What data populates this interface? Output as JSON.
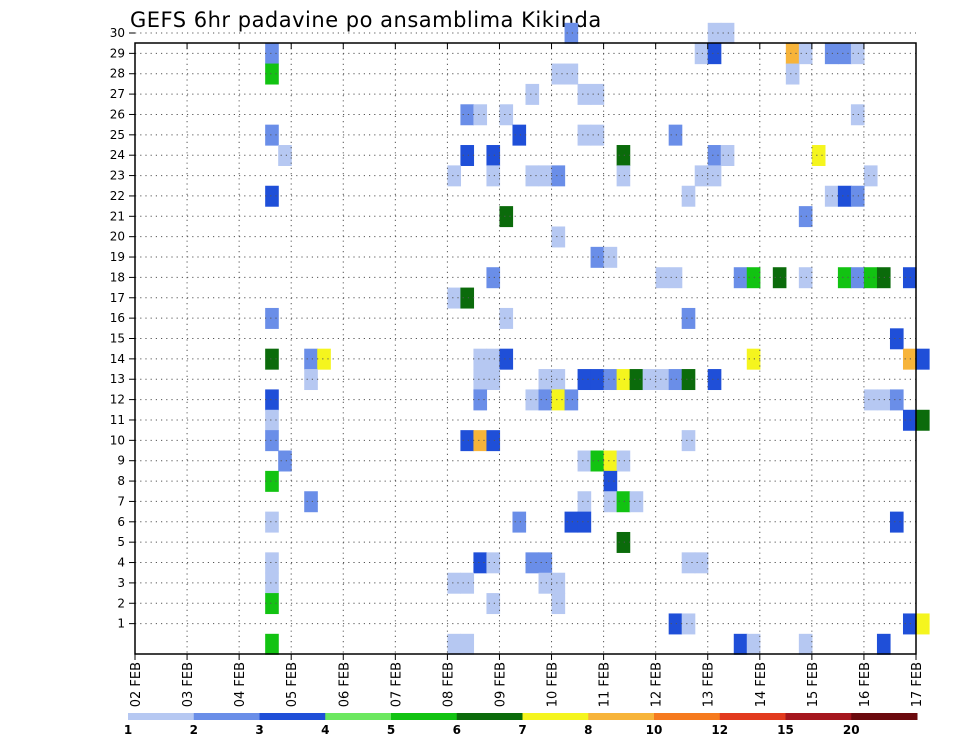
{
  "chart_data": {
    "type": "heatmap",
    "title": "GEFS 6hr padavine po ansamblima Kikinda",
    "xlabel": "",
    "ylabel": "",
    "x_tick_labels": [
      "02 FEB",
      "03 FEB",
      "04 FEB",
      "05 FEB",
      "06 FEB",
      "07 FEB",
      "08 FEB",
      "09 FEB",
      "10 FEB",
      "11 FEB",
      "12 FEB",
      "13 FEB",
      "14 FEB",
      "15 FEB",
      "16 FEB",
      "17 FEB"
    ],
    "y_tick_labels": [
      "1",
      "2",
      "3",
      "4",
      "5",
      "6",
      "7",
      "8",
      "9",
      "10",
      "11",
      "12",
      "13",
      "14",
      "15",
      "16",
      "17",
      "18",
      "19",
      "20",
      "21",
      "22",
      "23",
      "24",
      "25",
      "26",
      "27",
      "28",
      "29",
      "30"
    ],
    "x_range_days": [
      0,
      15
    ],
    "y_range": [
      0,
      30
    ],
    "grid": true,
    "colorbar": {
      "labels": [
        "1",
        "2",
        "3",
        "4",
        "5",
        "6",
        "7",
        "8",
        "10",
        "12",
        "15",
        "20"
      ],
      "colors": [
        "#b6c8f2",
        "#6a8ee8",
        "#1f4fd8",
        "#6ce860",
        "#12c312",
        "#0b6b0b",
        "#f5f51e",
        "#f7b43a",
        "#f67a1e",
        "#e23a1e",
        "#a5161e",
        "#6b0a0e"
      ]
    },
    "cells": [
      [
        8.25,
        30,
        2
      ],
      [
        11.0,
        30,
        1
      ],
      [
        11.25,
        30,
        1
      ],
      [
        2.5,
        29,
        2
      ],
      [
        10.75,
        29,
        1
      ],
      [
        11.0,
        29,
        3
      ],
      [
        12.5,
        29,
        8
      ],
      [
        12.75,
        29,
        1
      ],
      [
        13.25,
        29,
        2
      ],
      [
        13.5,
        29,
        2
      ],
      [
        13.75,
        29,
        1
      ],
      [
        2.5,
        28,
        5
      ],
      [
        8.0,
        28,
        1
      ],
      [
        8.25,
        28,
        1
      ],
      [
        12.5,
        28,
        1
      ],
      [
        7.5,
        27,
        1
      ],
      [
        8.5,
        27,
        1
      ],
      [
        8.75,
        27,
        1
      ],
      [
        6.25,
        26,
        2
      ],
      [
        6.5,
        26,
        1
      ],
      [
        7.0,
        26,
        1
      ],
      [
        13.75,
        26,
        1
      ],
      [
        2.5,
        25,
        2
      ],
      [
        7.25,
        25,
        3
      ],
      [
        8.5,
        25,
        1
      ],
      [
        8.75,
        25,
        1
      ],
      [
        10.25,
        25,
        2
      ],
      [
        2.75,
        24,
        1
      ],
      [
        6.25,
        24,
        3
      ],
      [
        6.75,
        24,
        3
      ],
      [
        9.25,
        24,
        6
      ],
      [
        11.0,
        24,
        2
      ],
      [
        11.25,
        24,
        1
      ],
      [
        13.0,
        24,
        7
      ],
      [
        6.0,
        23,
        1
      ],
      [
        6.75,
        23,
        1
      ],
      [
        7.5,
        23,
        1
      ],
      [
        7.75,
        23,
        1
      ],
      [
        8.0,
        23,
        2
      ],
      [
        9.25,
        23,
        1
      ],
      [
        10.75,
        23,
        1
      ],
      [
        11.0,
        23,
        1
      ],
      [
        14.0,
        23,
        1
      ],
      [
        2.5,
        22,
        3
      ],
      [
        10.5,
        22,
        1
      ],
      [
        13.25,
        22,
        1
      ],
      [
        13.5,
        22,
        3
      ],
      [
        13.75,
        22,
        2
      ],
      [
        7.0,
        21,
        6
      ],
      [
        12.75,
        21,
        2
      ],
      [
        8.0,
        20,
        1
      ],
      [
        8.75,
        19,
        2
      ],
      [
        9.0,
        19,
        1
      ],
      [
        6.75,
        18,
        2
      ],
      [
        10.0,
        18,
        1
      ],
      [
        10.25,
        18,
        1
      ],
      [
        11.5,
        18,
        2
      ],
      [
        11.75,
        18,
        5
      ],
      [
        12.25,
        18,
        6
      ],
      [
        12.75,
        18,
        1
      ],
      [
        13.5,
        18,
        5
      ],
      [
        13.75,
        18,
        2
      ],
      [
        14.0,
        18,
        5
      ],
      [
        14.25,
        18,
        6
      ],
      [
        14.75,
        18,
        3
      ],
      [
        6.0,
        17,
        1
      ],
      [
        6.25,
        17,
        6
      ],
      [
        2.5,
        16,
        2
      ],
      [
        7.0,
        16,
        1
      ],
      [
        10.5,
        16,
        2
      ],
      [
        14.5,
        15,
        3
      ],
      [
        2.5,
        14,
        6
      ],
      [
        3.25,
        14,
        2
      ],
      [
        3.5,
        14,
        7
      ],
      [
        6.5,
        14,
        1
      ],
      [
        6.75,
        14,
        1
      ],
      [
        7.0,
        14,
        3
      ],
      [
        11.75,
        14,
        7
      ],
      [
        14.75,
        14,
        8
      ],
      [
        15.0,
        14,
        3
      ],
      [
        3.25,
        13,
        1
      ],
      [
        6.5,
        13,
        1
      ],
      [
        6.75,
        13,
        1
      ],
      [
        7.75,
        13,
        1
      ],
      [
        8.0,
        13,
        1
      ],
      [
        8.5,
        13,
        3
      ],
      [
        8.75,
        13,
        3
      ],
      [
        9.0,
        13,
        2
      ],
      [
        9.25,
        13,
        7
      ],
      [
        9.5,
        13,
        6
      ],
      [
        9.75,
        13,
        1
      ],
      [
        10.0,
        13,
        1
      ],
      [
        10.25,
        13,
        2
      ],
      [
        10.5,
        13,
        6
      ],
      [
        11.0,
        13,
        3
      ],
      [
        2.5,
        12,
        3
      ],
      [
        6.5,
        12,
        2
      ],
      [
        7.5,
        12,
        1
      ],
      [
        7.75,
        12,
        2
      ],
      [
        8.0,
        12,
        7
      ],
      [
        8.25,
        12,
        2
      ],
      [
        14.0,
        12,
        1
      ],
      [
        14.25,
        12,
        1
      ],
      [
        14.5,
        12,
        2
      ],
      [
        2.5,
        11,
        1
      ],
      [
        14.75,
        11,
        3
      ],
      [
        15.0,
        11,
        6
      ],
      [
        2.5,
        10,
        2
      ],
      [
        6.25,
        10,
        3
      ],
      [
        6.5,
        10,
        8
      ],
      [
        6.75,
        10,
        3
      ],
      [
        10.5,
        10,
        1
      ],
      [
        2.75,
        9,
        2
      ],
      [
        8.5,
        9,
        1
      ],
      [
        8.75,
        9,
        5
      ],
      [
        9.0,
        9,
        7
      ],
      [
        9.25,
        9,
        1
      ],
      [
        2.5,
        8,
        5
      ],
      [
        9.0,
        8,
        3
      ],
      [
        3.25,
        7,
        2
      ],
      [
        8.5,
        7,
        1
      ],
      [
        9.0,
        7,
        1
      ],
      [
        9.25,
        7,
        5
      ],
      [
        9.5,
        7,
        1
      ],
      [
        2.5,
        6,
        1
      ],
      [
        7.25,
        6,
        2
      ],
      [
        8.25,
        6,
        3
      ],
      [
        8.5,
        6,
        3
      ],
      [
        14.5,
        6,
        3
      ],
      [
        9.25,
        5,
        6
      ],
      [
        2.5,
        4,
        1
      ],
      [
        6.5,
        4,
        3
      ],
      [
        6.75,
        4,
        1
      ],
      [
        7.5,
        4,
        2
      ],
      [
        7.75,
        4,
        2
      ],
      [
        10.5,
        4,
        1
      ],
      [
        10.75,
        4,
        1
      ],
      [
        2.5,
        3,
        1
      ],
      [
        6.0,
        3,
        1
      ],
      [
        6.25,
        3,
        1
      ],
      [
        7.75,
        3,
        1
      ],
      [
        8.0,
        3,
        1
      ],
      [
        2.5,
        2,
        5
      ],
      [
        6.75,
        2,
        1
      ],
      [
        8.0,
        2,
        1
      ],
      [
        10.25,
        1,
        3
      ],
      [
        10.5,
        1,
        1
      ],
      [
        14.75,
        1,
        3
      ],
      [
        15.0,
        1,
        7
      ],
      [
        2.5,
        0,
        5
      ],
      [
        6.0,
        0,
        1
      ],
      [
        6.25,
        0,
        1
      ],
      [
        11.5,
        0,
        3
      ],
      [
        11.75,
        0,
        1
      ],
      [
        12.75,
        0,
        1
      ],
      [
        14.25,
        0,
        3
      ]
    ]
  }
}
